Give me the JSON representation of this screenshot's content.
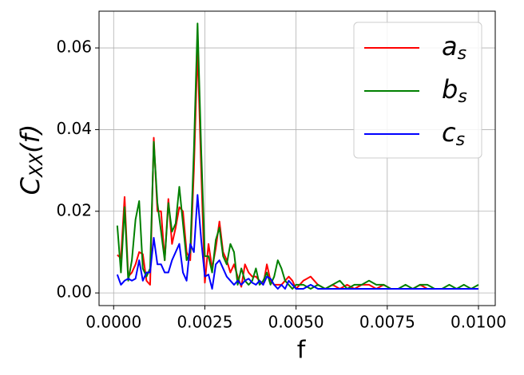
{
  "chart_data": {
    "type": "line",
    "xlabel": "f",
    "ylabel": {
      "base": "C",
      "sub": "XX",
      "rest": "(f)"
    },
    "x": [
      0.0001,
      0.0002,
      0.0003,
      0.0004,
      0.0005,
      0.0006,
      0.0007,
      0.0008,
      0.0009,
      0.001,
      0.0011,
      0.0012,
      0.0013,
      0.0014,
      0.0015,
      0.0016,
      0.0017,
      0.0018,
      0.0019,
      0.002,
      0.0021,
      0.0022,
      0.0023,
      0.0024,
      0.0025,
      0.0026,
      0.0027,
      0.0028,
      0.0029,
      0.003,
      0.0031,
      0.0032,
      0.0033,
      0.0034,
      0.0035,
      0.0036,
      0.0037,
      0.0038,
      0.0039,
      0.004,
      0.0041,
      0.0042,
      0.0043,
      0.0044,
      0.0045,
      0.0046,
      0.0047,
      0.0048,
      0.0049,
      0.005,
      0.0052,
      0.0054,
      0.0056,
      0.0058,
      0.006,
      0.0062,
      0.0064,
      0.0066,
      0.0068,
      0.007,
      0.0072,
      0.0074,
      0.0076,
      0.0078,
      0.008,
      0.0082,
      0.0084,
      0.0086,
      0.0088,
      0.009,
      0.0092,
      0.0094,
      0.0096,
      0.0098,
      0.01
    ],
    "series": [
      {
        "name": "a",
        "name_sub": "s",
        "color": "#ff0000",
        "values": [
          0.0093,
          0.0085,
          0.0235,
          0.004,
          0.005,
          0.007,
          0.01,
          0.0095,
          0.003,
          0.002,
          0.038,
          0.02,
          0.02,
          0.008,
          0.023,
          0.012,
          0.016,
          0.021,
          0.02,
          0.01,
          0.008,
          0.03,
          0.06,
          0.03,
          0.0025,
          0.012,
          0.006,
          0.011,
          0.0175,
          0.01,
          0.008,
          0.005,
          0.007,
          0.004,
          0.0015,
          0.007,
          0.005,
          0.004,
          0.004,
          0.003,
          0.002,
          0.007,
          0.003,
          0.002,
          0.002,
          0.002,
          0.003,
          0.004,
          0.003,
          0.001,
          0.003,
          0.004,
          0.002,
          0.001,
          0.002,
          0.001,
          0.002,
          0.001,
          0.002,
          0.002,
          0.001,
          0.002,
          0.001,
          0.001,
          0.001,
          0.001,
          0.002,
          0.001,
          0.001,
          0.001,
          0.001,
          0.001,
          0.001,
          0.001,
          0.001
        ]
      },
      {
        "name": "b",
        "name_sub": "s",
        "color": "#008000",
        "values": [
          0.0165,
          0.005,
          0.021,
          0.003,
          0.008,
          0.018,
          0.0225,
          0.006,
          0.004,
          0.006,
          0.037,
          0.022,
          0.015,
          0.008,
          0.022,
          0.015,
          0.017,
          0.026,
          0.017,
          0.008,
          0.01,
          0.035,
          0.066,
          0.035,
          0.009,
          0.009,
          0.005,
          0.013,
          0.016,
          0.009,
          0.007,
          0.012,
          0.01,
          0.002,
          0.006,
          0.003,
          0.002,
          0.003,
          0.006,
          0.002,
          0.003,
          0.005,
          0.002,
          0.004,
          0.008,
          0.006,
          0.003,
          0.002,
          0.001,
          0.002,
          0.002,
          0.001,
          0.002,
          0.001,
          0.002,
          0.003,
          0.001,
          0.002,
          0.002,
          0.003,
          0.002,
          0.002,
          0.001,
          0.001,
          0.002,
          0.001,
          0.002,
          0.002,
          0.001,
          0.001,
          0.002,
          0.001,
          0.002,
          0.001,
          0.002
        ]
      },
      {
        "name": "c",
        "name_sub": "s",
        "color": "#0000ff",
        "values": [
          0.0045,
          0.002,
          0.003,
          0.0035,
          0.003,
          0.0035,
          0.008,
          0.003,
          0.005,
          0.005,
          0.0135,
          0.007,
          0.007,
          0.005,
          0.005,
          0.008,
          0.01,
          0.012,
          0.005,
          0.003,
          0.012,
          0.01,
          0.024,
          0.013,
          0.004,
          0.0045,
          0.001,
          0.007,
          0.008,
          0.006,
          0.004,
          0.003,
          0.002,
          0.003,
          0.002,
          0.003,
          0.0035,
          0.0025,
          0.002,
          0.003,
          0.002,
          0.004,
          0.0035,
          0.002,
          0.001,
          0.002,
          0.001,
          0.003,
          0.002,
          0.001,
          0.001,
          0.002,
          0.001,
          0.001,
          0.001,
          0.001,
          0.001,
          0.001,
          0.001,
          0.001,
          0.001,
          0.001,
          0.001,
          0.001,
          0.001,
          0.001,
          0.001,
          0.001,
          0.001,
          0.001,
          0.001,
          0.001,
          0.001,
          0.001,
          0.001
        ]
      }
    ],
    "xlim": [
      -0.0004,
      0.01046
    ],
    "ylim": [
      -0.0031,
      0.069
    ],
    "xticks": [
      {
        "value": 0,
        "label": "0.0000"
      },
      0.0025,
      {
        "value": 0.005,
        "label": "0.0050"
      },
      0.0075,
      {
        "value": 0.01,
        "label": "0.0100"
      }
    ],
    "yticks": [
      {
        "value": 0,
        "label": "0.00"
      },
      0.02,
      0.04,
      0.06
    ],
    "grid": true,
    "legend": "upper right"
  }
}
